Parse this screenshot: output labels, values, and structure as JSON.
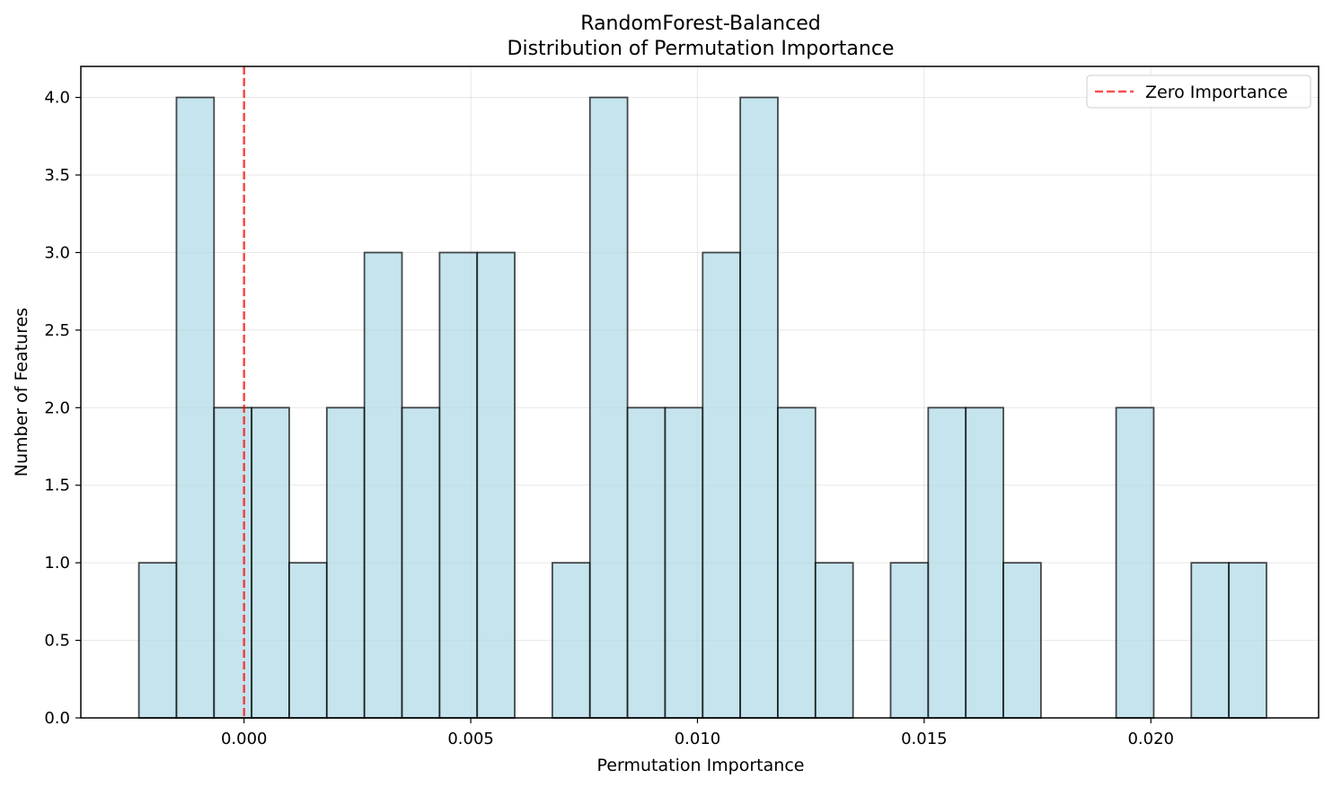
{
  "colors": {
    "bar_fill": "#add8e6",
    "bar_edge": "#000000",
    "zero_line": "#ff0000",
    "grid": "#b0b0b0"
  },
  "chart_data": {
    "type": "bar",
    "title_line1": "RandomForest-Balanced",
    "title_line2": "Distribution of Permutation Importance",
    "xlabel": "Permutation Importance",
    "ylabel": "Number of Features",
    "xlim": [
      -0.0036,
      0.0237
    ],
    "ylim": [
      0,
      4.2
    ],
    "xticks": [
      0.0,
      0.005,
      0.01,
      0.015,
      0.02
    ],
    "xtick_labels": [
      "0.000",
      "0.005",
      "0.010",
      "0.015",
      "0.020"
    ],
    "yticks": [
      0.0,
      0.5,
      1.0,
      1.5,
      2.0,
      2.5,
      3.0,
      3.5,
      4.0
    ],
    "ytick_labels": [
      "0.0",
      "0.5",
      "1.0",
      "1.5",
      "2.0",
      "2.5",
      "3.0",
      "3.5",
      "4.0"
    ],
    "grid": true,
    "bin_start": -0.00232,
    "bin_width": 0.000829,
    "counts": [
      1,
      4,
      2,
      2,
      1,
      2,
      3,
      2,
      3,
      3,
      0,
      1,
      4,
      2,
      2,
      3,
      4,
      2,
      1,
      0,
      1,
      2,
      2,
      1,
      0,
      0,
      2,
      0,
      1,
      1
    ],
    "reference_line": {
      "x": 0.0,
      "style": "dashed"
    },
    "legend": {
      "label": "Zero Importance",
      "placement": "top-right"
    }
  }
}
